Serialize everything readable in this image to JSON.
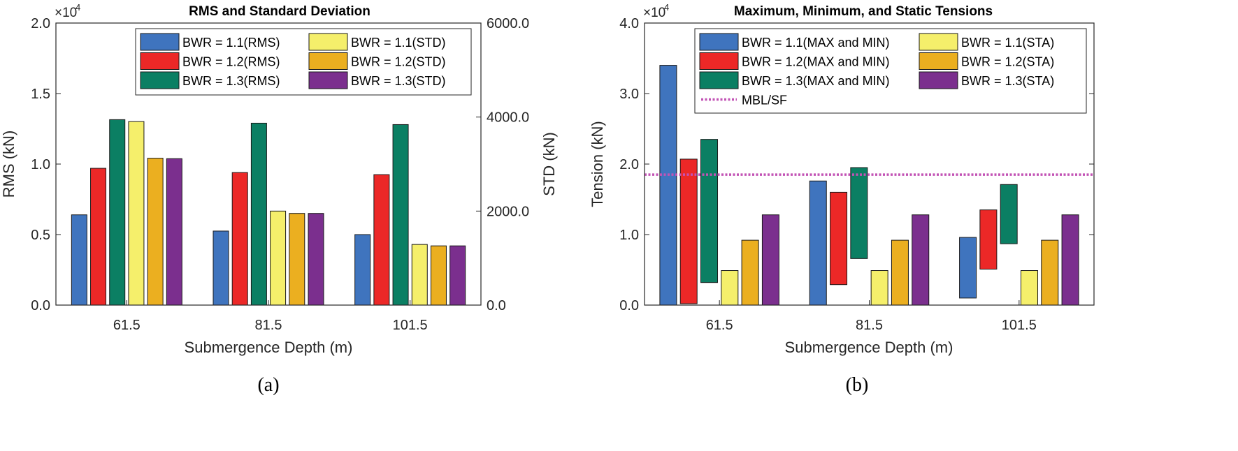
{
  "colors": {
    "bwr11_main": "#3f74be",
    "bwr12_main": "#ec2827",
    "bwr13_main": "#0b7f63",
    "bwr11_sec": "#f5ef6b",
    "bwr12_sec": "#ebaf20",
    "bwr13_sec": "#7b2f8e",
    "mbl": "#c253b5"
  },
  "chart_data": [
    {
      "type": "bar",
      "panel_label": "(a)",
      "title": "RMS and Standard Deviation",
      "xlabel": "Submergence Depth (m)",
      "ylabel": "RMS (kN)",
      "ylabel_right": "STD (kN)",
      "y_exponent_base": "×10",
      "y_exponent_power": "4",
      "categories": [
        "61.5",
        "81.5",
        "101.5"
      ],
      "ylim": [
        0,
        20000
      ],
      "ylim_right": [
        0,
        6000
      ],
      "yticks": [
        {
          "value": 0,
          "label": "0.0"
        },
        {
          "value": 5000,
          "label": "0.5"
        },
        {
          "value": 10000,
          "label": "1.0"
        },
        {
          "value": 15000,
          "label": "1.5"
        },
        {
          "value": 20000,
          "label": "2.0"
        }
      ],
      "yticks_right": [
        {
          "value": 0,
          "label": "0.0"
        },
        {
          "value": 2000,
          "label": "2000.0"
        },
        {
          "value": 4000,
          "label": "4000.0"
        },
        {
          "value": 6000,
          "label": "6000.0"
        }
      ],
      "series": [
        {
          "name": "BWR = 1.1(RMS)",
          "axis": "left",
          "color_key": "bwr11_main",
          "values": [
            6400,
            5250,
            5000
          ]
        },
        {
          "name": "BWR = 1.2(RMS)",
          "axis": "left",
          "color_key": "bwr12_main",
          "values": [
            9700,
            9400,
            9250
          ]
        },
        {
          "name": "BWR = 1.3(RMS)",
          "axis": "left",
          "color_key": "bwr13_main",
          "values": [
            13150,
            12900,
            12800
          ]
        },
        {
          "name": "BWR = 1.1(STD)",
          "axis": "right",
          "color_key": "bwr11_sec",
          "values": [
            3905,
            2000,
            1290
          ]
        },
        {
          "name": "BWR = 1.2(STD)",
          "axis": "right",
          "color_key": "bwr12_sec",
          "values": [
            3125,
            1950,
            1260
          ]
        },
        {
          "name": "BWR = 1.3(STD)",
          "axis": "right",
          "color_key": "bwr13_sec",
          "values": [
            3115,
            1950,
            1260
          ]
        }
      ],
      "legend": {
        "position": "top-right",
        "columns": [
          [
            "BWR = 1.1(RMS)",
            "BWR = 1.2(RMS)",
            "BWR = 1.3(RMS)"
          ],
          [
            "BWR = 1.1(STD)",
            "BWR = 1.2(STD)",
            "BWR = 1.3(STD)"
          ]
        ]
      }
    },
    {
      "type": "bar",
      "panel_label": "(b)",
      "title": "Maximum, Minimum, and Static Tensions",
      "xlabel": "Submergence Depth (m)",
      "ylabel": "Tension (kN)",
      "y_exponent_base": "×10",
      "y_exponent_power": "4",
      "categories": [
        "61.5",
        "81.5",
        "101.5"
      ],
      "ylim": [
        0,
        40000
      ],
      "yticks": [
        {
          "value": 0,
          "label": "0.0"
        },
        {
          "value": 10000,
          "label": "1.0"
        },
        {
          "value": 20000,
          "label": "2.0"
        },
        {
          "value": 30000,
          "label": "3.0"
        },
        {
          "value": 40000,
          "label": "4.0"
        }
      ],
      "series": [
        {
          "name": "BWR = 1.1(MAX and MIN)",
          "kind": "range",
          "color_key": "bwr11_main",
          "min": [
            0,
            0,
            1000
          ],
          "max": [
            34000,
            17600,
            9600
          ]
        },
        {
          "name": "BWR = 1.2(MAX and MIN)",
          "kind": "range",
          "color_key": "bwr12_main",
          "min": [
            200,
            2900,
            5100
          ],
          "max": [
            20700,
            16000,
            13500
          ]
        },
        {
          "name": "BWR = 1.3(MAX and MIN)",
          "kind": "range",
          "color_key": "bwr13_main",
          "min": [
            3200,
            6600,
            8700
          ],
          "max": [
            23500,
            19500,
            17100
          ]
        },
        {
          "name": "BWR = 1.1(STA)",
          "kind": "bar",
          "color_key": "bwr11_sec",
          "values": [
            4900,
            4900,
            4900
          ]
        },
        {
          "name": "BWR = 1.2(STA)",
          "kind": "bar",
          "color_key": "bwr12_sec",
          "values": [
            9200,
            9200,
            9200
          ]
        },
        {
          "name": "BWR = 1.3(STA)",
          "kind": "bar",
          "color_key": "bwr13_sec",
          "values": [
            12800,
            12800,
            12800
          ]
        }
      ],
      "reference_line": {
        "name": "MBL/SF",
        "value": 18500,
        "style": "dotted",
        "color_key": "mbl"
      },
      "legend": {
        "position": "top-right",
        "columns": [
          [
            "BWR = 1.1(MAX and MIN)",
            "BWR = 1.2(MAX and MIN)",
            "BWR = 1.3(MAX and MIN)",
            "MBL/SF"
          ],
          [
            "BWR = 1.1(STA)",
            "BWR = 1.2(STA)",
            "BWR = 1.3(STA)"
          ]
        ]
      }
    }
  ]
}
